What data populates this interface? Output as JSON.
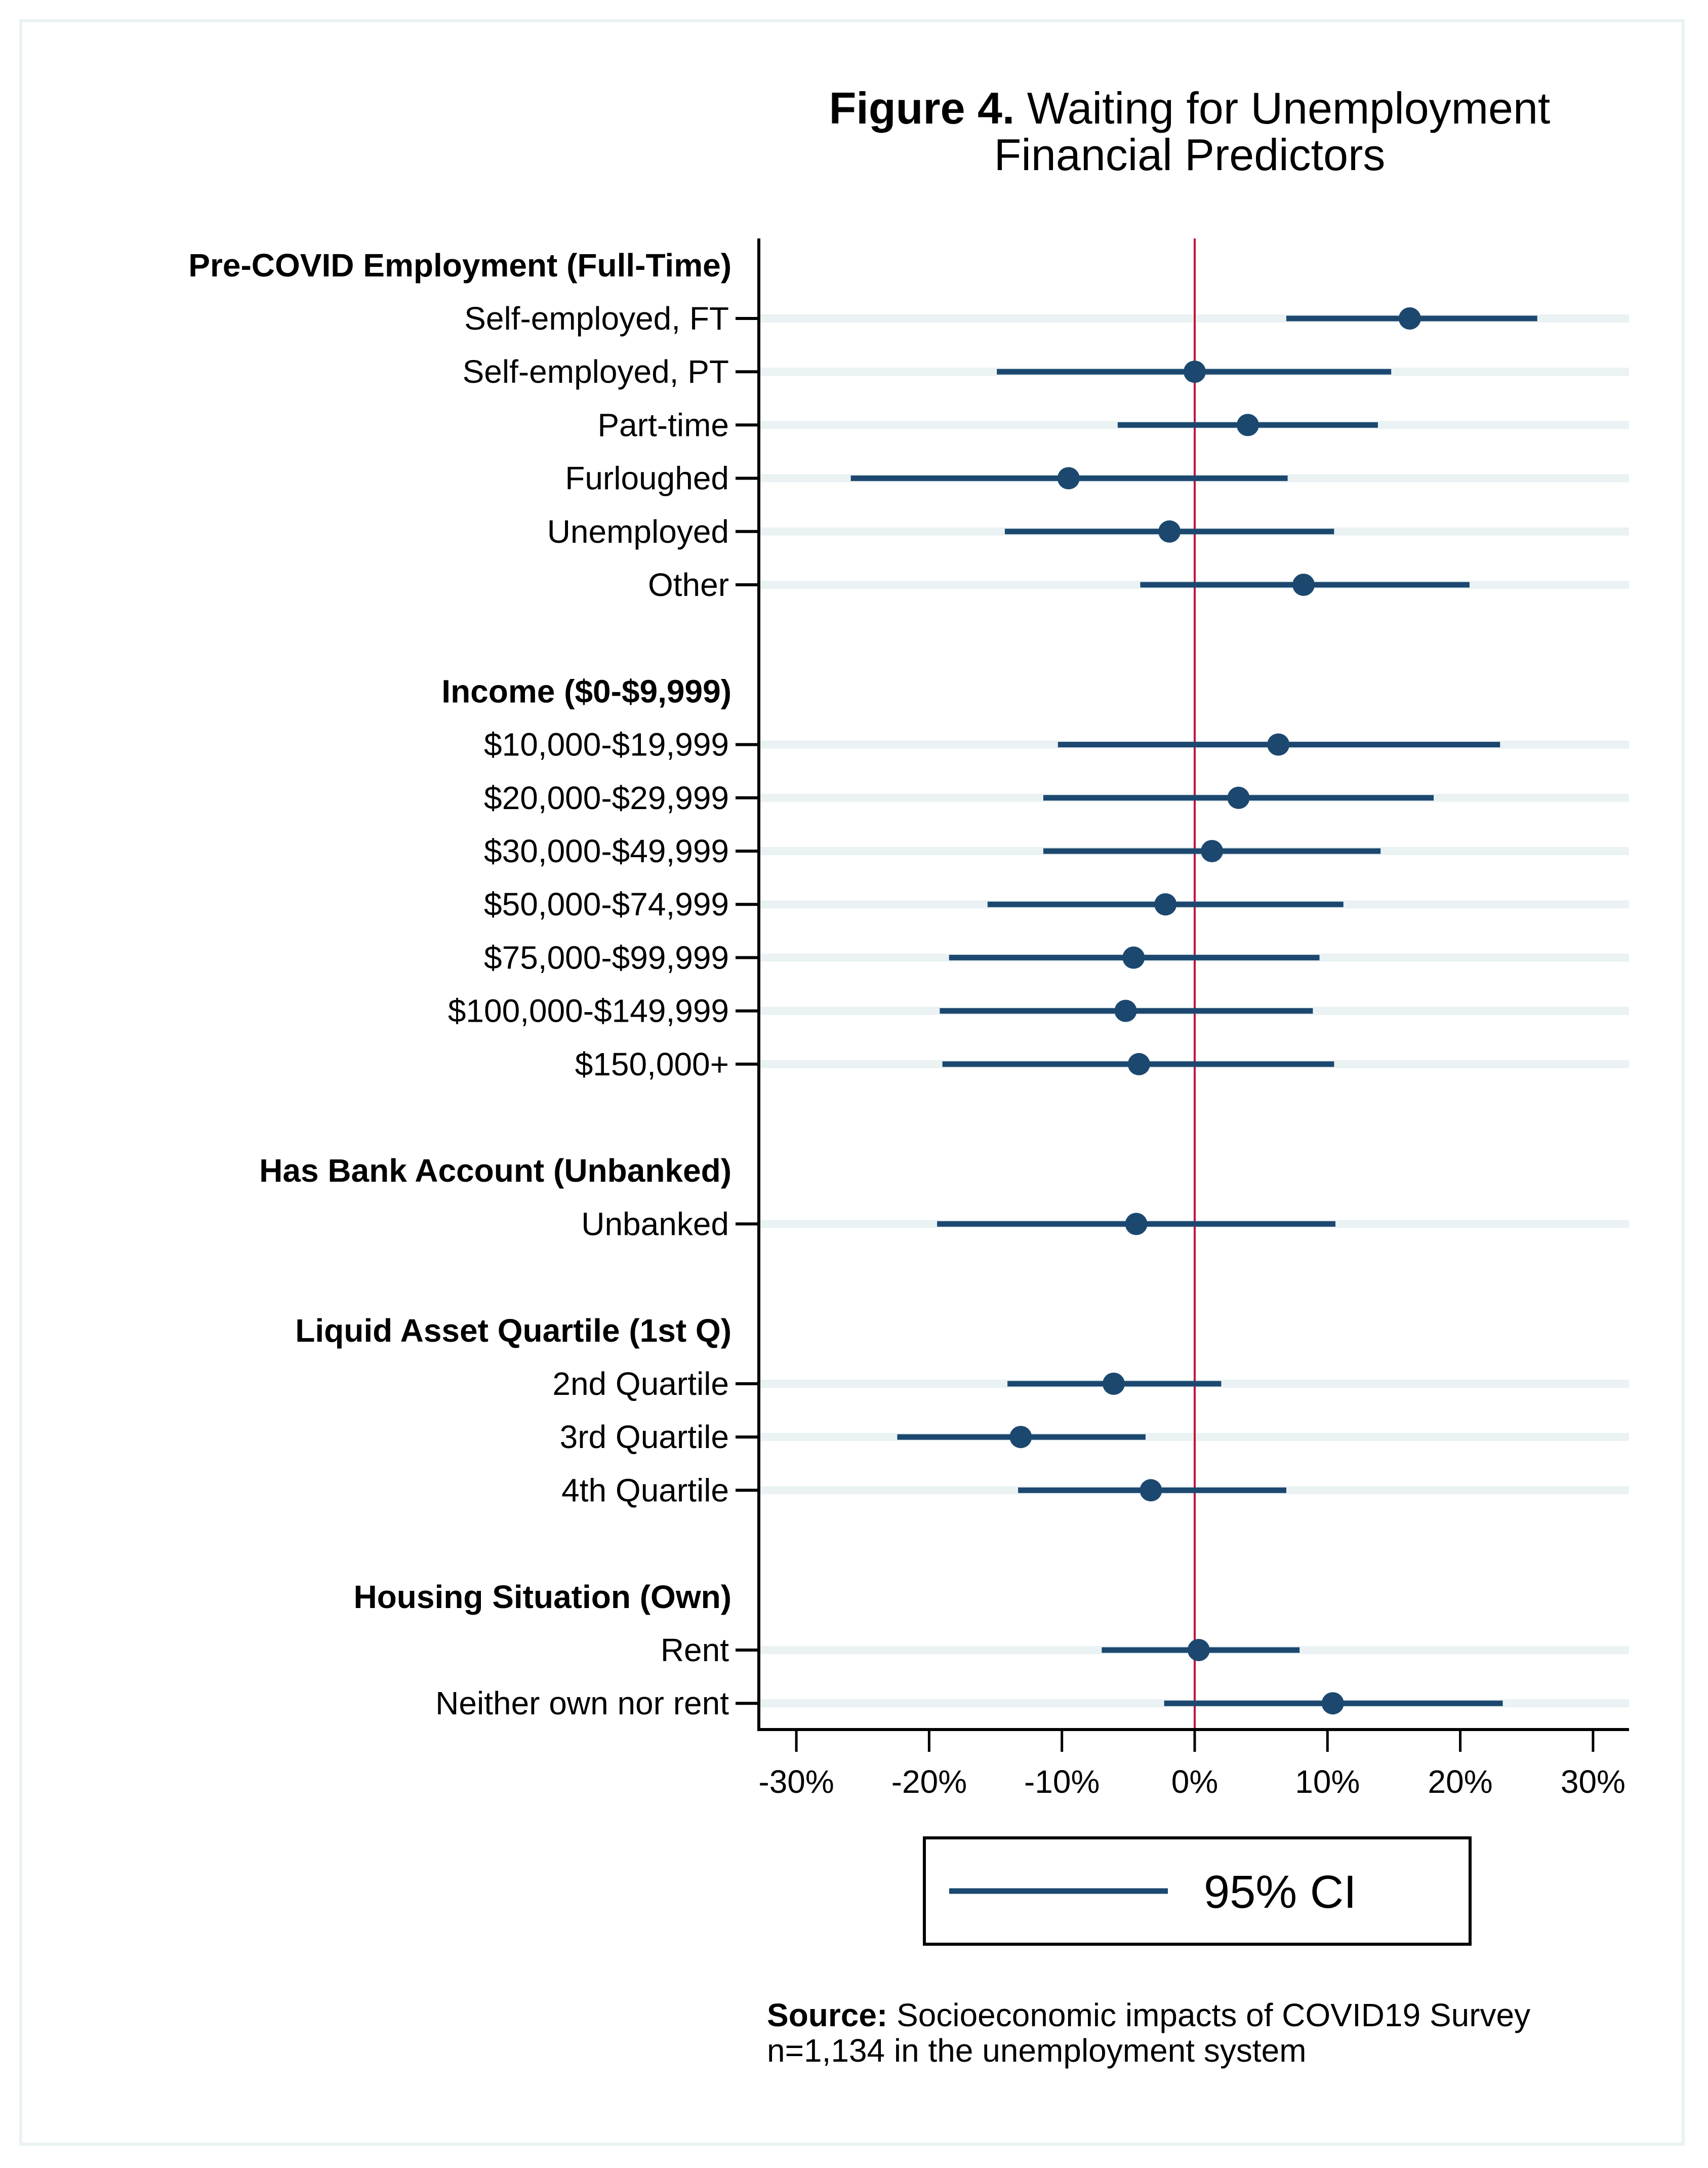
{
  "figure": {
    "title_bold": "Figure 4.",
    "title_rest": " Waiting for Unemployment",
    "subtitle": "Financial Predictors",
    "source_label": "Source:",
    "source_text": " Socioeconomic impacts of COVID19 Survey",
    "source_note": "n=1,134 in the unemployment system"
  },
  "colors": {
    "marker": "#1C4870",
    "ci_line": "#1C4870",
    "reference_line": "#C0143C",
    "row_band": "#EAF2F3",
    "axis": "#000000"
  },
  "chart_data": {
    "type": "coefplot",
    "title": "Figure 4. Waiting for Unemployment Financial Predictors",
    "xlabel": "",
    "ylabel": "",
    "xlim": [
      -33,
      33
    ],
    "xticks": [
      -30,
      -20,
      -10,
      0,
      10,
      20,
      30
    ],
    "xtick_labels": [
      "-30%",
      "-20%",
      "-10%",
      "0%",
      "10%",
      "20%",
      "30%"
    ],
    "reference_line": 0,
    "grid": false,
    "legend": {
      "entries": [
        "95% CI"
      ],
      "placement": "bottom-center"
    },
    "groups": [
      {
        "header": "Pre-COVID Employment (Full-Time)",
        "rows": [
          {
            "label": "Self-employed, FT",
            "estimate": 16.2,
            "ci_low": 6.9,
            "ci_high": 25.8
          },
          {
            "label": "Self-employed, PT",
            "estimate": 0.0,
            "ci_low": -14.9,
            "ci_high": 14.8
          },
          {
            "label": "Part-time",
            "estimate": 4.0,
            "ci_low": -5.8,
            "ci_high": 13.8
          },
          {
            "label": "Furloughed",
            "estimate": -9.5,
            "ci_low": -25.9,
            "ci_high": 7.0
          },
          {
            "label": "Unemployed",
            "estimate": -1.9,
            "ci_low": -14.3,
            "ci_high": 10.5
          },
          {
            "label": "Other",
            "estimate": 8.2,
            "ci_low": -4.1,
            "ci_high": 20.7
          }
        ]
      },
      {
        "header": "Income ($0-$9,999)",
        "rows": [
          {
            "label": "$10,000-$19,999",
            "estimate": 6.3,
            "ci_low": -10.3,
            "ci_high": 23.0
          },
          {
            "label": "$20,000-$29,999",
            "estimate": 3.3,
            "ci_low": -11.4,
            "ci_high": 18.0
          },
          {
            "label": "$30,000-$49,999",
            "estimate": 1.3,
            "ci_low": -11.4,
            "ci_high": 14.0
          },
          {
            "label": "$50,000-$74,999",
            "estimate": -2.2,
            "ci_low": -15.6,
            "ci_high": 11.2
          },
          {
            "label": "$75,000-$99,999",
            "estimate": -4.6,
            "ci_low": -18.5,
            "ci_high": 9.4
          },
          {
            "label": "$100,000-$149,999",
            "estimate": -5.2,
            "ci_low": -19.2,
            "ci_high": 8.9
          },
          {
            "label": "$150,000+",
            "estimate": -4.2,
            "ci_low": -19.0,
            "ci_high": 10.5
          }
        ]
      },
      {
        "header": "Has Bank Account (Unbanked)",
        "rows": [
          {
            "label": "Unbanked",
            "estimate": -4.4,
            "ci_low": -19.4,
            "ci_high": 10.6
          }
        ]
      },
      {
        "header": "Liquid Asset Quartile (1st Q)",
        "rows": [
          {
            "label": "2nd Quartile",
            "estimate": -6.1,
            "ci_low": -14.1,
            "ci_high": 2.0
          },
          {
            "label": "3rd Quartile",
            "estimate": -13.1,
            "ci_low": -22.4,
            "ci_high": -3.7
          },
          {
            "label": "4th Quartile",
            "estimate": -3.3,
            "ci_low": -13.3,
            "ci_high": 6.9
          }
        ]
      },
      {
        "header": "Housing Situation (Own)",
        "rows": [
          {
            "label": "Rent",
            "estimate": 0.3,
            "ci_low": -7.0,
            "ci_high": 7.9
          },
          {
            "label": "Neither own nor rent",
            "estimate": 10.4,
            "ci_low": -2.3,
            "ci_high": 23.2
          }
        ]
      }
    ]
  }
}
